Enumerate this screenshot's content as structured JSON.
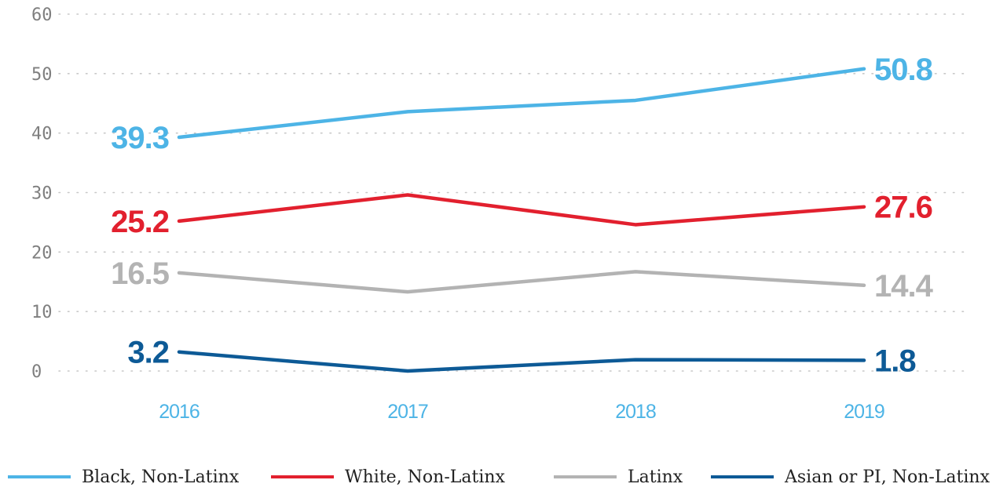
{
  "chart_data": {
    "type": "line",
    "categories": [
      "2016",
      "2017",
      "2018",
      "2019"
    ],
    "ylim": [
      0,
      60
    ],
    "yticks": [
      "0",
      "10",
      "20",
      "30",
      "40",
      "50",
      "60"
    ],
    "grid": true,
    "legend_position": "bottom",
    "series": [
      {
        "name": "Black, Non-Latinx",
        "color": "#4db4e6",
        "values": [
          39.3,
          43.6,
          45.5,
          50.8
        ],
        "start_label": "39.3",
        "end_label": "50.8"
      },
      {
        "name": "White, Non-Latinx",
        "color": "#e2202e",
        "values": [
          25.2,
          29.6,
          24.6,
          27.6
        ],
        "start_label": "25.2",
        "end_label": "27.6"
      },
      {
        "name": "Latinx",
        "color": "#b3b3b3",
        "values": [
          16.5,
          13.3,
          16.7,
          14.4
        ],
        "start_label": "16.5",
        "end_label": "14.4"
      },
      {
        "name": "Asian or PI, Non-Latinx",
        "color": "#0d5a96",
        "values": [
          3.2,
          0.0,
          1.9,
          1.8
        ],
        "start_label": "3.2",
        "end_label": "1.8"
      }
    ]
  }
}
